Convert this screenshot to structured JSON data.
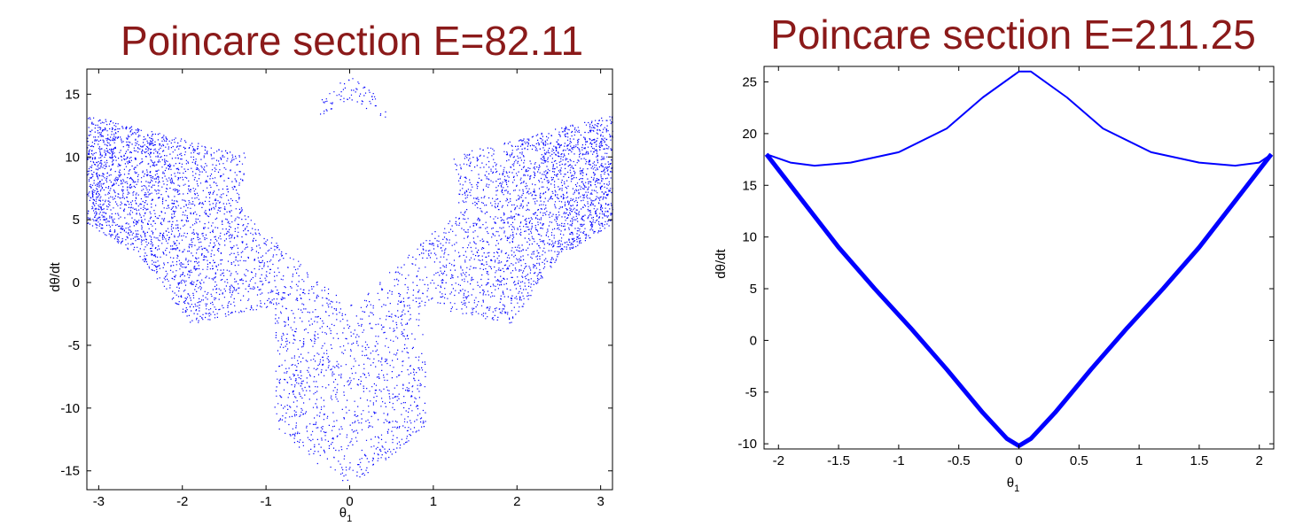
{
  "chart_data": [
    {
      "type": "scatter",
      "title": "Poincare section E=82.11",
      "xlabel": "θ1",
      "ylabel": "dθ/dt",
      "xlim": [
        -3.14159,
        3.14159
      ],
      "ylim": [
        -16.5,
        17
      ],
      "xticks": [
        -3,
        -2,
        -1,
        0,
        1,
        2,
        3
      ],
      "yticks": [
        -15,
        -10,
        -5,
        0,
        5,
        10,
        15
      ],
      "grid": false,
      "series": [
        {
          "color": "#0000ff",
          "marker": "dot",
          "description_points": {
            "outer_band_top": [
              [
                -3.14,
                13.3
              ],
              [
                -2.6,
                12.5
              ],
              [
                -2.0,
                11.4
              ],
              [
                -1.4,
                10.4
              ],
              [
                -1.0,
                10.1
              ],
              [
                -0.6,
                12.0
              ],
              [
                -0.3,
                15.0
              ],
              [
                0.0,
                16.5
              ],
              [
                0.3,
                15.0
              ],
              [
                0.6,
                12.0
              ],
              [
                1.0,
                10.1
              ],
              [
                1.4,
                10.4
              ],
              [
                2.0,
                11.4
              ],
              [
                2.6,
                12.5
              ],
              [
                3.14,
                13.3
              ]
            ],
            "outer_band_bottom": [
              [
                -3.1,
                4.5
              ],
              [
                -2.5,
                2.0
              ],
              [
                -2.0,
                -2.5
              ],
              [
                -1.6,
                -6.5
              ],
              [
                -1.2,
                -9.5
              ],
              [
                -0.8,
                -12.0
              ],
              [
                -0.4,
                -14.5
              ],
              [
                0.0,
                -16.2
              ],
              [
                0.4,
                -14.5
              ],
              [
                0.8,
                -12.0
              ],
              [
                1.2,
                -9.5
              ],
              [
                1.6,
                -6.5
              ],
              [
                2.0,
                -2.5
              ],
              [
                2.5,
                2.0
              ],
              [
                3.1,
                4.5
              ]
            ]
          }
        }
      ]
    },
    {
      "type": "scatter",
      "title": "Poincare section E=211.25",
      "xlabel": "θ1",
      "ylabel": "dθ/dt",
      "xlim": [
        -2.12,
        2.12
      ],
      "ylim": [
        -10.5,
        26.5
      ],
      "xticks": [
        -2,
        -1.5,
        -1,
        -0.5,
        0,
        0.5,
        1,
        1.5,
        2
      ],
      "yticks": [
        -10,
        -5,
        0,
        5,
        10,
        15,
        20,
        25
      ],
      "grid": false,
      "series": [
        {
          "color": "#0000ff",
          "marker": "dot",
          "upper_curve": [
            [
              -2.1,
              18.0
            ],
            [
              -1.9,
              17.2
            ],
            [
              -1.7,
              16.9
            ],
            [
              -1.4,
              17.2
            ],
            [
              -1.0,
              18.2
            ],
            [
              -0.6,
              20.5
            ],
            [
              -0.3,
              23.5
            ],
            [
              0.0,
              26.0
            ],
            [
              0.1,
              26.0
            ],
            [
              0.4,
              23.5
            ],
            [
              0.7,
              20.5
            ],
            [
              1.1,
              18.2
            ],
            [
              1.5,
              17.2
            ],
            [
              1.8,
              16.9
            ],
            [
              2.0,
              17.2
            ],
            [
              2.1,
              18.0
            ]
          ],
          "lower_curve": [
            [
              -2.1,
              18.0
            ],
            [
              -1.8,
              13.5
            ],
            [
              -1.5,
              9.0
            ],
            [
              -1.2,
              5.0
            ],
            [
              -0.9,
              1.2
            ],
            [
              -0.6,
              -2.8
            ],
            [
              -0.3,
              -7.0
            ],
            [
              -0.1,
              -9.5
            ],
            [
              0.0,
              -10.2
            ],
            [
              0.1,
              -9.5
            ],
            [
              0.3,
              -7.0
            ],
            [
              0.6,
              -2.8
            ],
            [
              0.9,
              1.2
            ],
            [
              1.2,
              5.0
            ],
            [
              1.5,
              9.0
            ],
            [
              1.8,
              13.5
            ],
            [
              2.1,
              18.0
            ]
          ]
        }
      ]
    }
  ]
}
